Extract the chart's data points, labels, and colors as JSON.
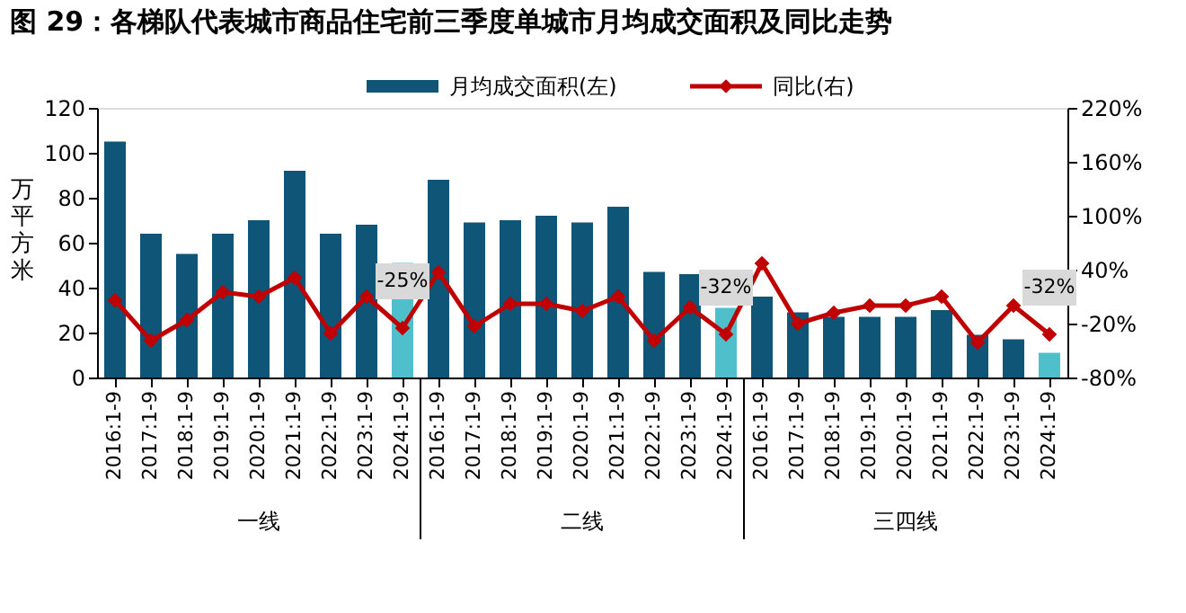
{
  "chart_data": {
    "type": "bar",
    "title": "图 29：各梯队代表城市商品住宅前三季度单城市月均成交面积及同比走势",
    "categories": [
      "2016:1-9",
      "2017:1-9",
      "2018:1-9",
      "2019:1-9",
      "2020:1-9",
      "2021:1-9",
      "2022:1-9",
      "2023:1-9",
      "2024:1-9",
      "2016:1-9",
      "2017:1-9",
      "2018:1-9",
      "2019:1-9",
      "2020:1-9",
      "2021:1-9",
      "2022:1-9",
      "2023:1-9",
      "2024:1-9",
      "2016:1-9",
      "2017:1-9",
      "2018:1-9",
      "2019:1-9",
      "2020:1-9",
      "2021:1-9",
      "2022:1-9",
      "2023:1-9",
      "2024:1-9"
    ],
    "series": [
      {
        "name": "月均成交面积(左)",
        "color": "#0e5577",
        "colors": [
          "#0e5577",
          "#0e5577",
          "#0e5577",
          "#0e5577",
          "#0e5577",
          "#0e5577",
          "#0e5577",
          "#0e5577",
          "#4fbfcc",
          "#0e5577",
          "#0e5577",
          "#0e5577",
          "#0e5577",
          "#0e5577",
          "#0e5577",
          "#0e5577",
          "#0e5577",
          "#4fbfcc",
          "#0e5577",
          "#0e5577",
          "#0e5577",
          "#0e5577",
          "#0e5577",
          "#0e5577",
          "#0e5577",
          "#0e5577",
          "#4fbfcc"
        ],
        "values": [
          105,
          64,
          55,
          64,
          70,
          92,
          64,
          68,
          51,
          88,
          69,
          70,
          72,
          69,
          76,
          47,
          46,
          31,
          36,
          29,
          27,
          27,
          27,
          30,
          19,
          17,
          11
        ]
      },
      {
        "name": "同比(右)",
        "type": "line",
        "axis": "y2",
        "color": "#c00000",
        "marker": "diamond",
        "values": [
          6,
          -39,
          -16,
          15,
          10,
          31,
          -31,
          10,
          -25,
          37,
          -23,
          2,
          2,
          -6,
          10,
          -39,
          -2,
          -32,
          47,
          -20,
          -8,
          0,
          0,
          10,
          -41,
          0,
          -32
        ],
        "value_labels": [
          null,
          null,
          null,
          null,
          null,
          null,
          null,
          null,
          "-25%",
          null,
          null,
          null,
          null,
          null,
          null,
          null,
          null,
          "-32%",
          null,
          null,
          null,
          null,
          null,
          null,
          null,
          null,
          "-32%"
        ]
      }
    ],
    "ylabel": "万平方米",
    "ylim": [
      0,
      120
    ],
    "yticks": [
      0,
      20,
      40,
      60,
      80,
      100,
      120
    ],
    "y2lim": [
      -80,
      220
    ],
    "y2ticks": [
      {
        "value": -80,
        "label": "-80%"
      },
      {
        "value": -20,
        "label": "-20%"
      },
      {
        "value": 40,
        "label": "40%"
      },
      {
        "value": 100,
        "label": "100%"
      },
      {
        "value": 160,
        "label": "160%"
      },
      {
        "value": 220,
        "label": "220%"
      }
    ],
    "annotations": [
      "一线",
      "二线",
      "三四线"
    ],
    "legend": "top",
    "grid": false
  }
}
